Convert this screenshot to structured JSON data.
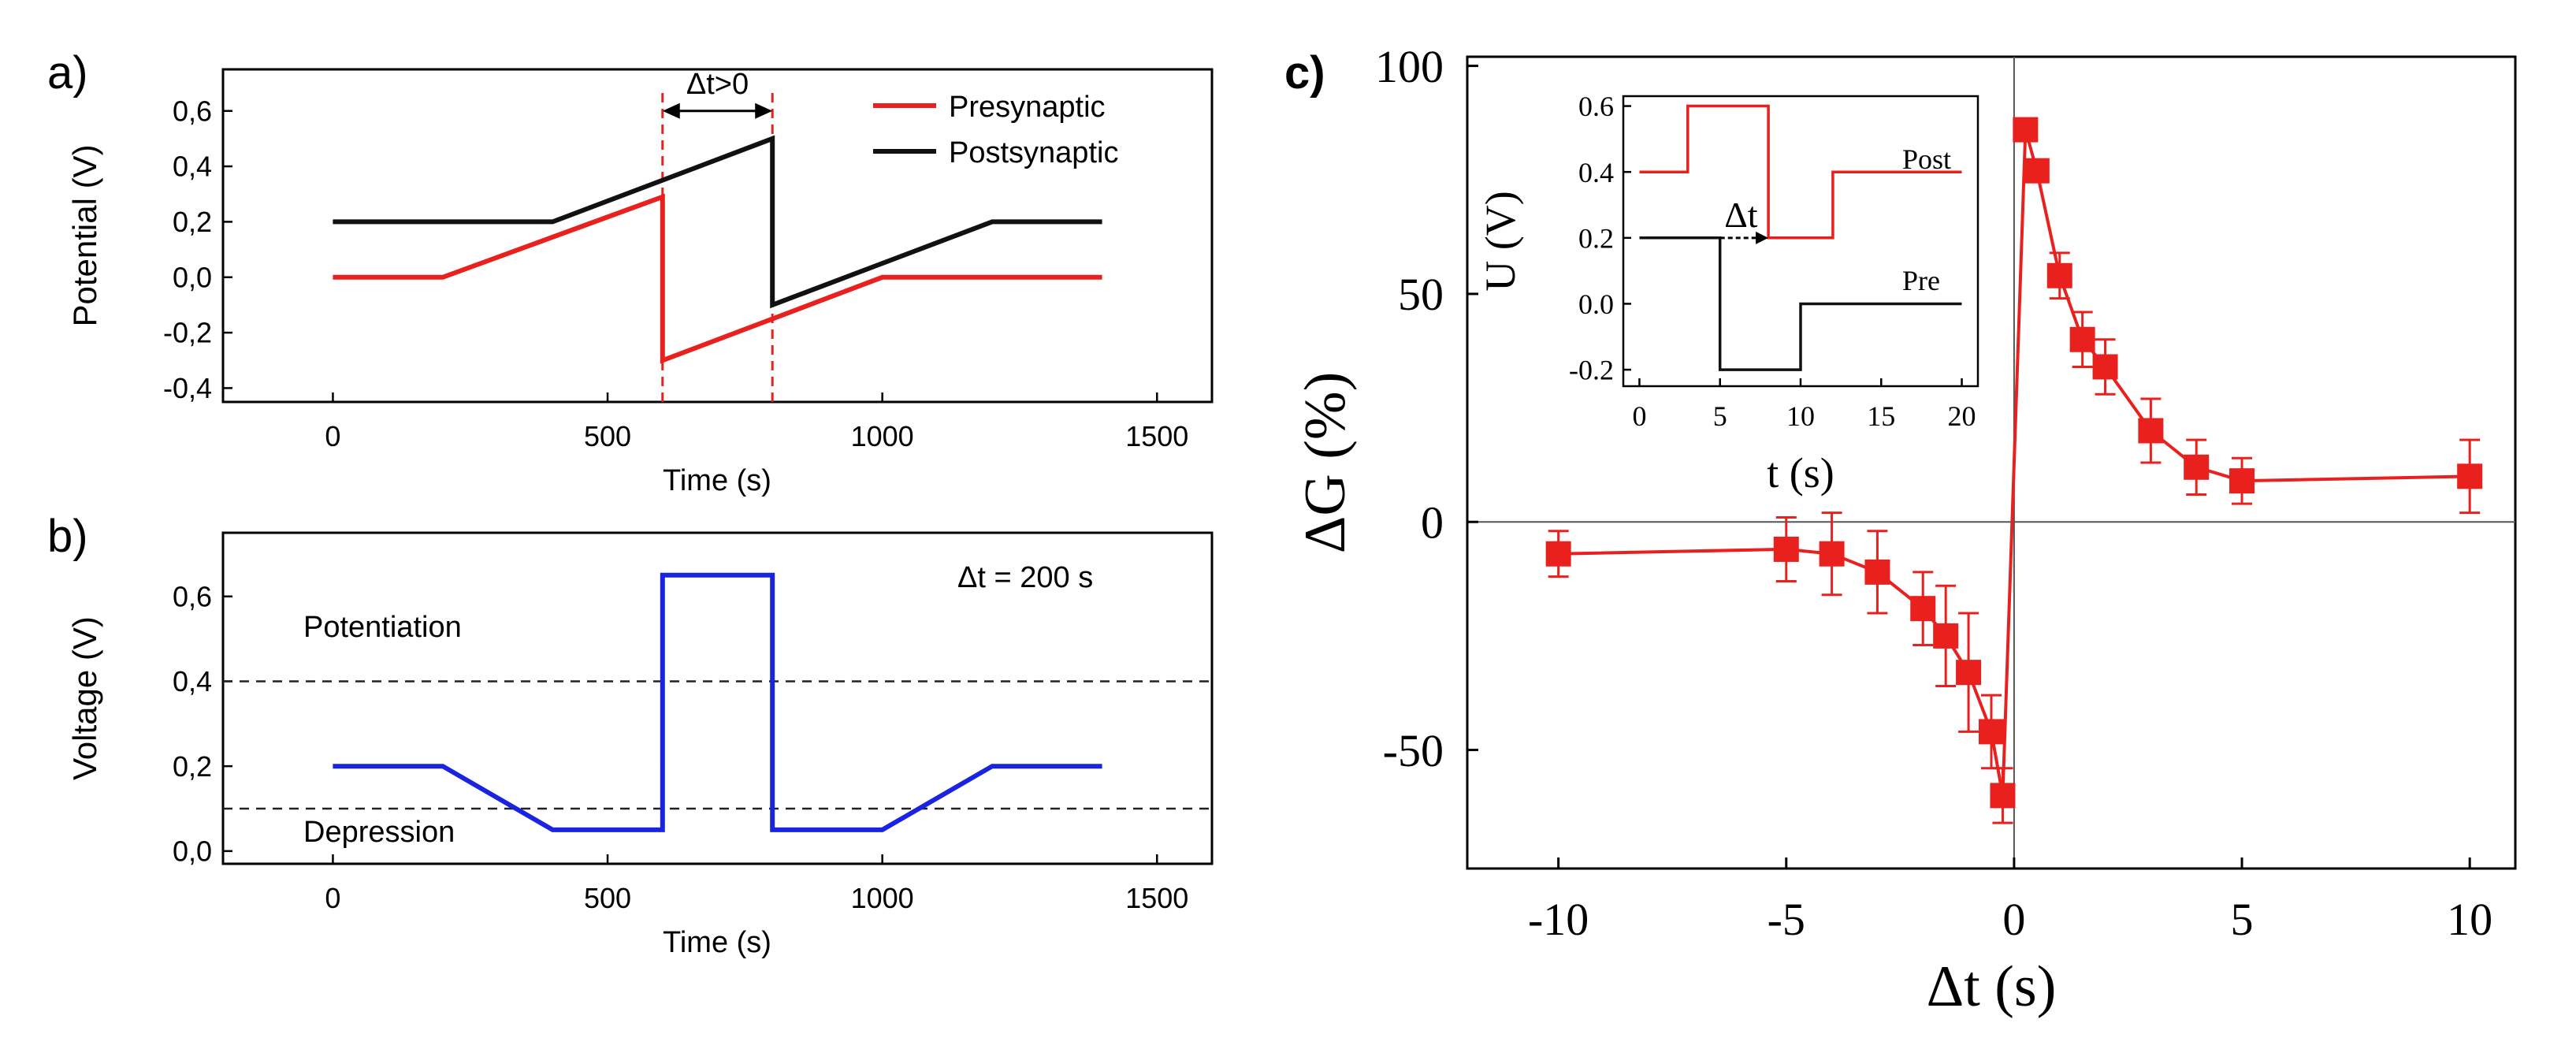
{
  "chart_data": [
    {
      "id": "a",
      "panel_label": "a)",
      "type": "line",
      "xlabel": "Time (s)",
      "ylabel": "Potential (V)",
      "xlim": [
        -200,
        1600
      ],
      "ylim": [
        -0.45,
        0.75
      ],
      "xticks": [
        0,
        500,
        1000,
        1500
      ],
      "xtick_labels": [
        "0",
        "500",
        "1000",
        "1500"
      ],
      "yticks": [
        -0.4,
        -0.2,
        0.0,
        0.2,
        0.4,
        0.6
      ],
      "ytick_labels": [
        "-0,4",
        "-0,2",
        "0,0",
        "0,2",
        "0,4",
        "0,6"
      ],
      "legend_position": "top-right",
      "series": [
        {
          "name": "Presynaptic",
          "color": "#e8211e",
          "x": [
            0,
            200,
            600,
            600,
            1000,
            1400
          ],
          "y": [
            0.0,
            0.0,
            0.29,
            -0.3,
            0.0,
            0.0
          ]
        },
        {
          "name": "Postsynaptic",
          "color": "#111111",
          "x": [
            0,
            400,
            800,
            800,
            1200,
            1400
          ],
          "y": [
            0.2,
            0.2,
            0.5,
            -0.1,
            0.2,
            0.2
          ]
        }
      ],
      "markers": [
        {
          "x": 600,
          "color": "#e8211e"
        },
        {
          "x": 800,
          "color": "#e8211e"
        }
      ],
      "annotation": {
        "text": "Δt>0",
        "x1": 600,
        "x2": 800,
        "y": 0.6
      }
    },
    {
      "id": "b",
      "panel_label": "b)",
      "type": "line",
      "xlabel": "Time (s)",
      "ylabel": "Voltage (V)",
      "xlim": [
        -200,
        1600
      ],
      "ylim": [
        -0.03,
        0.75
      ],
      "xticks": [
        0,
        500,
        1000,
        1500
      ],
      "xtick_labels": [
        "0",
        "500",
        "1000",
        "1500"
      ],
      "yticks": [
        0.0,
        0.2,
        0.4,
        0.6
      ],
      "ytick_labels": [
        "0,0",
        "0,2",
        "0,4",
        "0,6"
      ],
      "series": [
        {
          "name": "Voltage",
          "color": "#1a24e0",
          "x": [
            0,
            200,
            400,
            600,
            600,
            800,
            800,
            1000,
            1200,
            1400
          ],
          "y": [
            0.2,
            0.2,
            0.05,
            0.05,
            0.65,
            0.65,
            0.05,
            0.05,
            0.2,
            0.2
          ]
        }
      ],
      "thresholds": [
        {
          "y": 0.4,
          "label": "Potentiation"
        },
        {
          "y": 0.1,
          "label": "Depression"
        }
      ],
      "annotation": "Δt = 200 s"
    },
    {
      "id": "c",
      "panel_label": "c)",
      "type": "scatter",
      "xlabel": "Δt (s)",
      "ylabel": "ΔG (%)",
      "xlim": [
        -12,
        11
      ],
      "ylim": [
        -76,
        102
      ],
      "xticks": [
        -10,
        -5,
        0,
        5,
        10
      ],
      "xtick_labels": [
        "-10",
        "-5",
        "0",
        "5",
        "10"
      ],
      "yticks": [
        -50,
        0,
        50,
        100
      ],
      "ytick_labels": [
        "-50",
        "0",
        "50",
        "100"
      ],
      "color": "#e8211e",
      "x": [
        -10,
        -5,
        -4,
        -3,
        -2,
        -1.5,
        -1,
        -0.5,
        -0.25,
        0.25,
        0.5,
        1,
        1.5,
        2,
        3,
        4,
        5,
        10
      ],
      "y": [
        -7,
        -6,
        -7,
        -11,
        -19,
        -25,
        -33,
        -46,
        -60,
        86,
        77,
        54,
        40,
        34,
        20,
        12,
        9,
        10
      ],
      "yerr": [
        5,
        7,
        9,
        9,
        8,
        11,
        13,
        8,
        6,
        0,
        0,
        5,
        6,
        6,
        7,
        6,
        5,
        8
      ],
      "inset": {
        "xlabel": "t (s)",
        "ylabel": "U (V)",
        "xlim": [
          -1,
          21
        ],
        "ylim": [
          -0.25,
          0.63
        ],
        "xticks": [
          0,
          5,
          10,
          15,
          20
        ],
        "xtick_labels": [
          "0",
          "5",
          "10",
          "15",
          "20"
        ],
        "yticks": [
          -0.2,
          0.0,
          0.2,
          0.4,
          0.6
        ],
        "ytick_labels": [
          "-0.2",
          "0.0",
          "0.2",
          "0.4",
          "0.6"
        ],
        "series": [
          {
            "name": "Post",
            "color": "#e8211e",
            "x": [
              0,
              3,
              3,
              8,
              8,
              12,
              12,
              20
            ],
            "y": [
              0.4,
              0.4,
              0.6,
              0.6,
              0.2,
              0.2,
              0.4,
              0.4
            ]
          },
          {
            "name": "Pre",
            "color": "#111111",
            "x": [
              0,
              5,
              5,
              10,
              10,
              20
            ],
            "y": [
              0.2,
              0.2,
              -0.2,
              -0.2,
              0.0,
              0.0
            ]
          }
        ],
        "annotation": {
          "text": "Δt",
          "x1": 5,
          "x2": 8,
          "y": 0.2
        }
      }
    }
  ]
}
